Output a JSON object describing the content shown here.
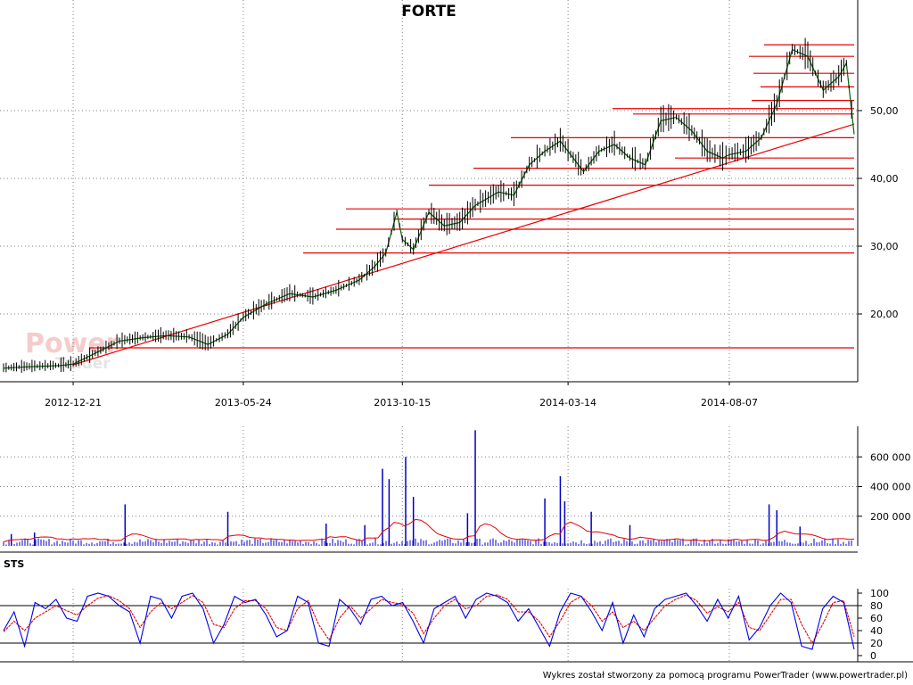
{
  "title": "FORTE",
  "footer": "Wykres został stworzony za pomocą programu PowerTrader (www.powertrader.pl)",
  "watermark": {
    "line1": "Power",
    "line2": "Trader"
  },
  "panels": {
    "oscillator_label": "STS"
  },
  "colors": {
    "price": "#006400",
    "sr_lines": "#e60000",
    "volume": "#0000c8",
    "volume_avg": "#e60000",
    "sts_k": "#0000e6",
    "sts_d": "#e60000",
    "grid": "#808080"
  },
  "chart_data": [
    {
      "type": "line",
      "panel": "price",
      "title": "FORTE",
      "x_ticks": [
        "2012-12-21",
        "2013-05-24",
        "2013-10-15",
        "2014-03-14",
        "2014-08-07"
      ],
      "y_ticks": [
        "20,00",
        "30,00",
        "40,00",
        "50,00"
      ],
      "ylim": [
        11,
        61
      ],
      "xlim": [
        "2012-10-19",
        "2014-11-28"
      ],
      "grid": true,
      "series": [
        {
          "x": [
            "2012-10-19",
            "2012-11-09",
            "2012-12-10",
            "2012-12-21",
            "2013-01-10",
            "2013-02-01",
            "2013-02-22",
            "2013-03-15",
            "2013-04-05",
            "2013-04-22",
            "2013-05-10",
            "2013-05-24",
            "2013-06-14",
            "2013-07-05",
            "2013-07-26",
            "2013-08-16",
            "2013-09-06",
            "2013-09-20",
            "2013-09-30",
            "2013-10-10",
            "2013-10-15",
            "2013-10-25",
            "2013-11-08",
            "2013-11-22",
            "2013-12-06",
            "2013-12-20",
            "2014-01-10",
            "2014-01-24",
            "2014-02-07",
            "2014-02-21",
            "2014-03-07",
            "2014-03-14",
            "2014-03-28",
            "2014-04-11",
            "2014-04-25",
            "2014-05-09",
            "2014-05-23",
            "2014-06-06",
            "2014-06-20",
            "2014-07-04",
            "2014-07-18",
            "2014-08-01",
            "2014-08-07",
            "2014-08-22",
            "2014-09-05",
            "2014-09-19",
            "2014-10-03",
            "2014-10-17",
            "2014-10-31",
            "2014-11-14",
            "2014-11-21",
            "2014-11-28"
          ],
          "values": [
            12.0,
            12.2,
            12.4,
            12.6,
            14.2,
            16.0,
            16.5,
            16.8,
            16.6,
            15.5,
            17.0,
            19.5,
            21.5,
            23.0,
            22.5,
            23.5,
            25.0,
            27.0,
            29.0,
            35.0,
            31.0,
            29.5,
            35.0,
            33.0,
            33.5,
            36.0,
            38.0,
            37.5,
            42.0,
            44.0,
            45.5,
            44.0,
            41.0,
            44.0,
            45.0,
            43.0,
            42.0,
            48.5,
            49.0,
            47.0,
            44.0,
            43.0,
            43.5,
            44.0,
            46.0,
            51.0,
            59.0,
            58.0,
            53.0,
            55.0,
            57.0,
            46.5
          ]
        }
      ],
      "support_resistance": [
        15.0,
        29.0,
        32.5,
        34.0,
        35.5,
        39.0,
        41.5,
        43.0,
        46.0,
        49.5,
        50.3,
        51.5,
        53.5,
        55.5,
        58.0,
        59.7
      ],
      "trendline": {
        "from": {
          "x": "2012-12-21",
          "y": 12.5
        },
        "to": {
          "x": "2014-11-28",
          "y": 48.0
        }
      }
    },
    {
      "type": "bar",
      "panel": "volume",
      "y_ticks": [
        "200 000",
        "400 000",
        "600 000"
      ],
      "ylim": [
        0,
        800000
      ],
      "grid": true,
      "spikes": [
        {
          "x": "2012-10-26",
          "value": 80000
        },
        {
          "x": "2012-11-16",
          "value": 90000
        },
        {
          "x": "2013-02-06",
          "value": 280000
        },
        {
          "x": "2013-05-10",
          "value": 230000
        },
        {
          "x": "2013-08-07",
          "value": 150000
        },
        {
          "x": "2013-09-11",
          "value": 140000
        },
        {
          "x": "2013-09-27",
          "value": 520000
        },
        {
          "x": "2013-10-03",
          "value": 450000
        },
        {
          "x": "2013-10-18",
          "value": 600000
        },
        {
          "x": "2013-10-25",
          "value": 330000
        },
        {
          "x": "2013-12-13",
          "value": 220000
        },
        {
          "x": "2013-12-20",
          "value": 780000
        },
        {
          "x": "2014-02-21",
          "value": 320000
        },
        {
          "x": "2014-03-07",
          "value": 470000
        },
        {
          "x": "2014-03-11",
          "value": 300000
        },
        {
          "x": "2014-04-04",
          "value": 230000
        },
        {
          "x": "2014-05-09",
          "value": 140000
        },
        {
          "x": "2014-09-12",
          "value": 280000
        },
        {
          "x": "2014-09-19",
          "value": 240000
        },
        {
          "x": "2014-10-10",
          "value": 130000
        }
      ],
      "baseline_volume": 30000
    },
    {
      "type": "line",
      "panel": "STS",
      "y_ticks": [
        "0",
        "20",
        "40",
        "60",
        "80",
        "100"
      ],
      "ylim": [
        0,
        100
      ],
      "reference_lines": [
        20,
        80
      ],
      "series": [
        {
          "name": "%K",
          "values": [
            40,
            70,
            15,
            85,
            75,
            90,
            60,
            55,
            95,
            100,
            95,
            80,
            70,
            20,
            95,
            90,
            60,
            95,
            100,
            75,
            20,
            50,
            95,
            85,
            90,
            65,
            30,
            40,
            95,
            85,
            20,
            15,
            90,
            75,
            50,
            90,
            95,
            80,
            85,
            55,
            20,
            75,
            85,
            95,
            60,
            90,
            100,
            95,
            85,
            55,
            75,
            45,
            15,
            70,
            100,
            95,
            70,
            40,
            85,
            20,
            65,
            30,
            75,
            90,
            95,
            100,
            80,
            55,
            90,
            60,
            95,
            25,
            45,
            80,
            100,
            85,
            15,
            10,
            75,
            95,
            85,
            10
          ],
          "d_values": [
            38,
            55,
            40,
            60,
            70,
            80,
            72,
            65,
            80,
            92,
            96,
            88,
            75,
            45,
            70,
            85,
            75,
            85,
            96,
            85,
            50,
            45,
            75,
            88,
            88,
            75,
            45,
            40,
            75,
            88,
            50,
            25,
            60,
            80,
            60,
            75,
            90,
            85,
            82,
            68,
            35,
            60,
            80,
            90,
            75,
            80,
            95,
            97,
            90,
            70,
            70,
            55,
            30,
            55,
            85,
            95,
            80,
            55,
            70,
            45,
            55,
            40,
            60,
            80,
            90,
            97,
            88,
            68,
            78,
            70,
            85,
            45,
            40,
            65,
            90,
            90,
            50,
            20,
            50,
            85,
            88,
            30
          ]
        }
      ]
    }
  ]
}
